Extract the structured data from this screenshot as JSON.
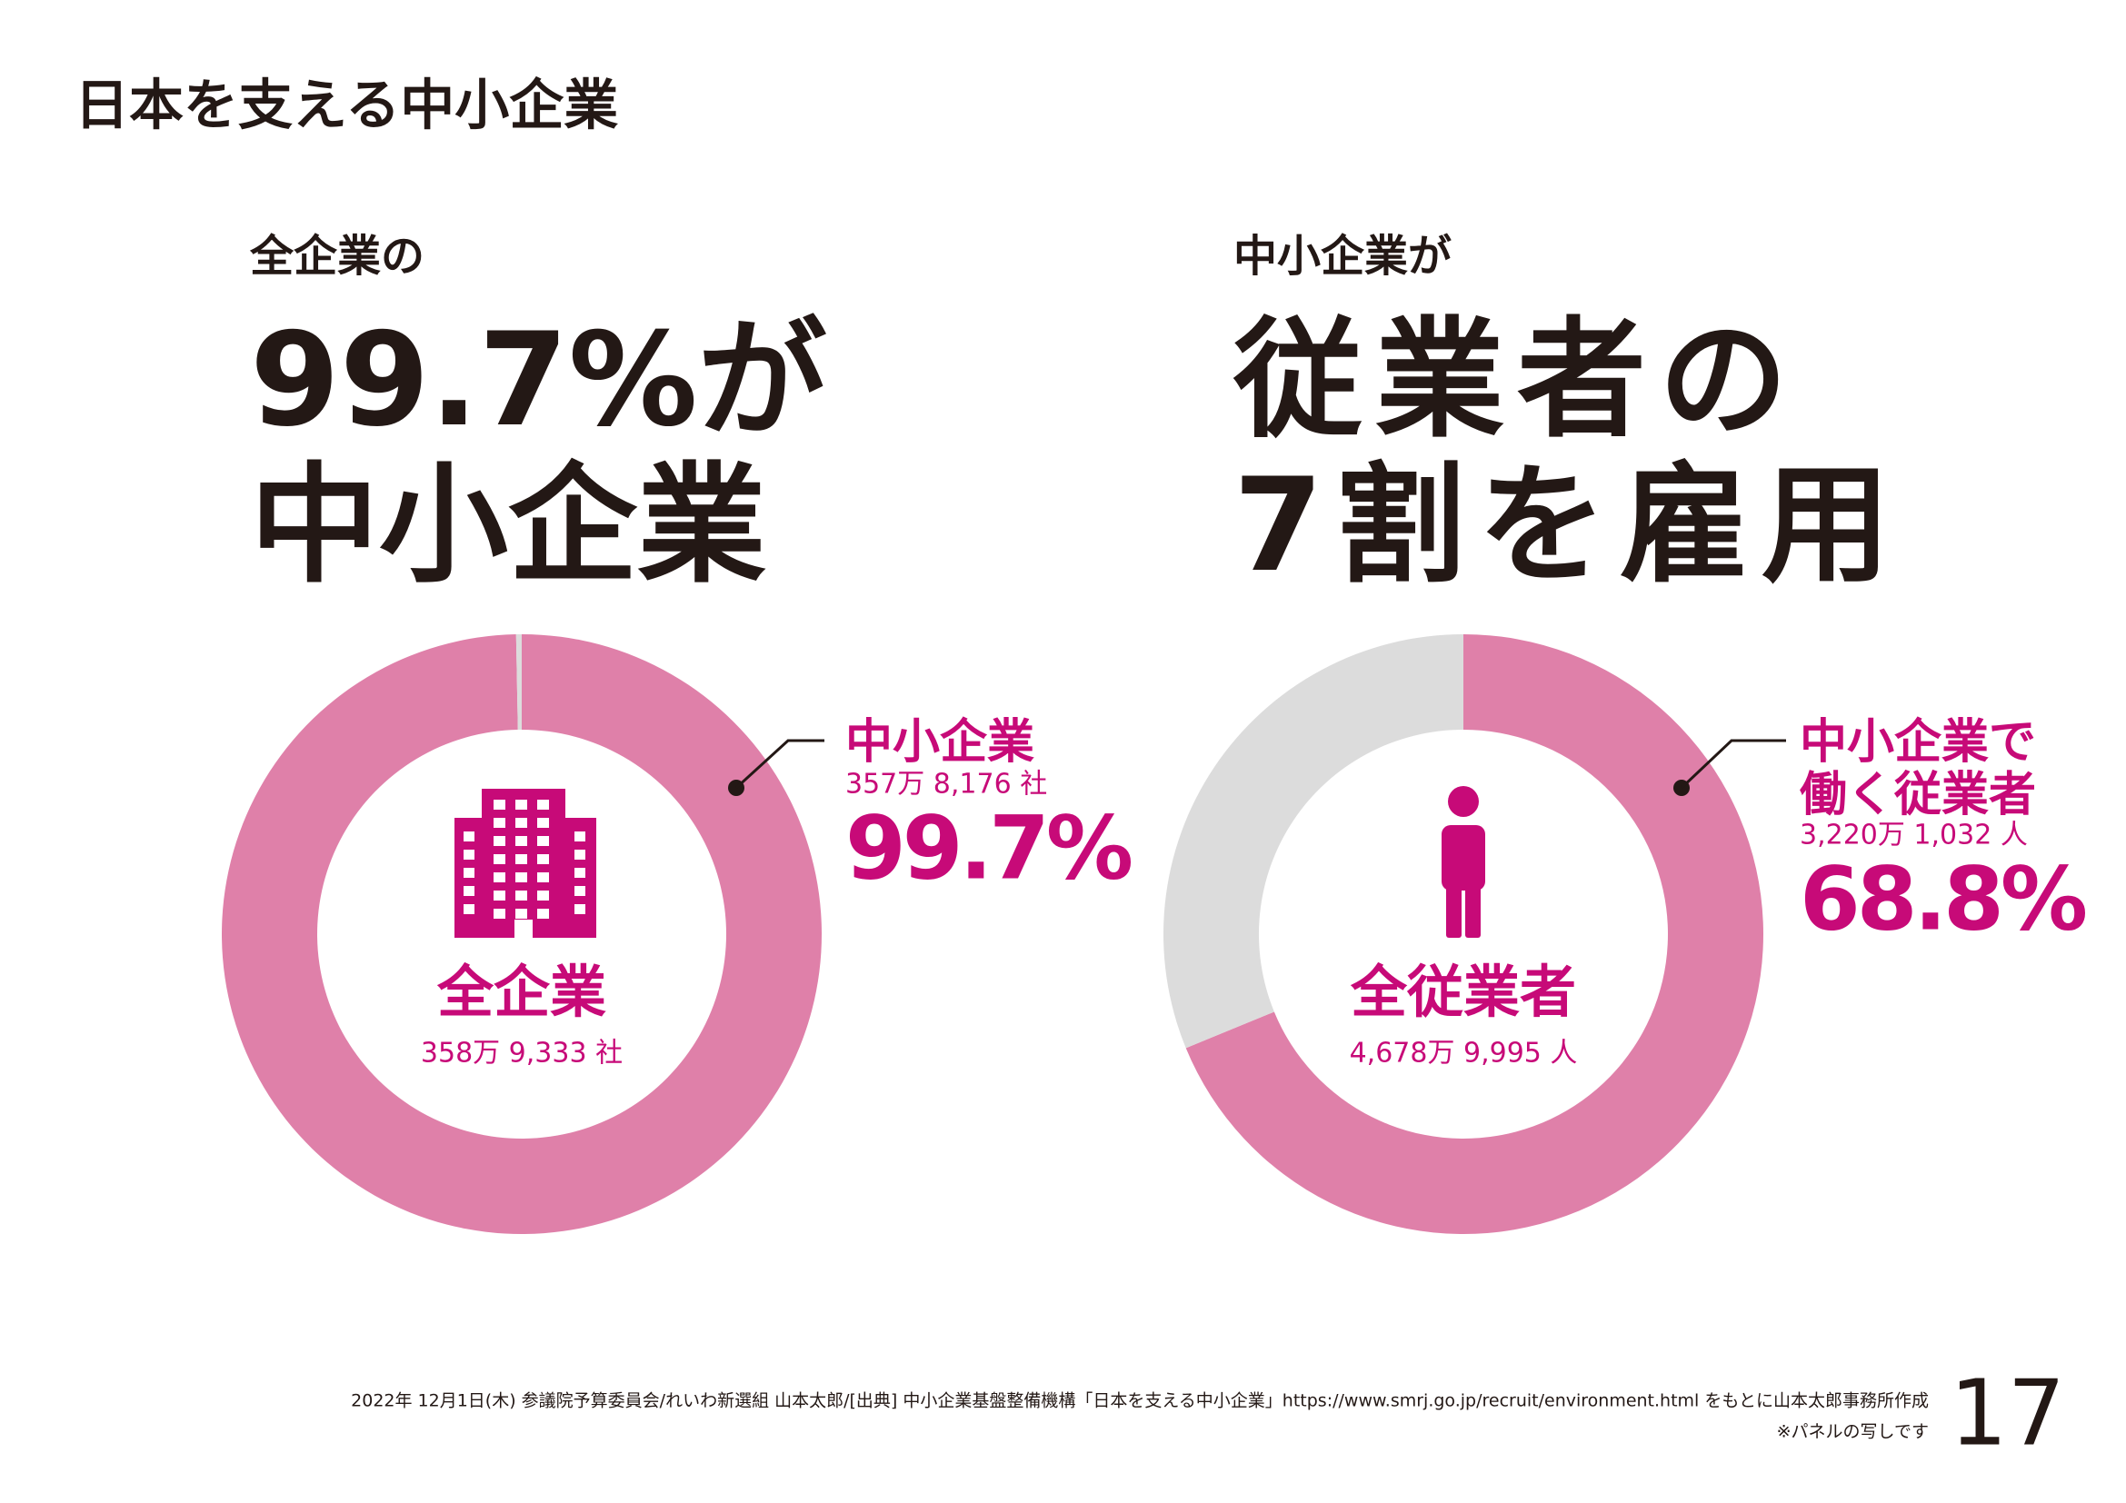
{
  "title": "日本を支える中小企業",
  "chart_data": [
    {
      "type": "donut",
      "heading": "全企業の",
      "headline": [
        "99.7%が",
        "中小企業"
      ],
      "categories": [
        "中小企業",
        null
      ],
      "values": [
        99.7,
        0.3
      ],
      "value_labels": [
        "99.7%",
        null
      ],
      "colors": [
        "#df80a9",
        "#dcdcdc"
      ],
      "callout_count": "357万 8,176 社",
      "center_label": "全企業",
      "center_count": "358万 9,333 社"
    },
    {
      "type": "donut",
      "heading": "中小企業が",
      "headline": [
        "従業者の",
        "7割を雇用"
      ],
      "categories": [
        "中小企業で働く従業者",
        null
      ],
      "values": [
        68.8,
        31.2
      ],
      "value_labels": [
        "68.8%",
        null
      ],
      "colors": [
        "#df80a9",
        "#dcdcdc"
      ],
      "callout_count": "3,220万 1,032 人",
      "center_label": "全従業者",
      "center_count": "4,678万 9,995 人"
    }
  ],
  "footer": {
    "source": "2022年 12月1日(木) 参議院予算委員会/れいわ新選組 山本太郎/[出典] 中小企業基盤整備機構「日本を支える中小企業」https://www.smrj.go.jp/recruit/environment.html をもとに山本太郎事務所作成",
    "note": "※パネルの写しです",
    "page": "17"
  }
}
